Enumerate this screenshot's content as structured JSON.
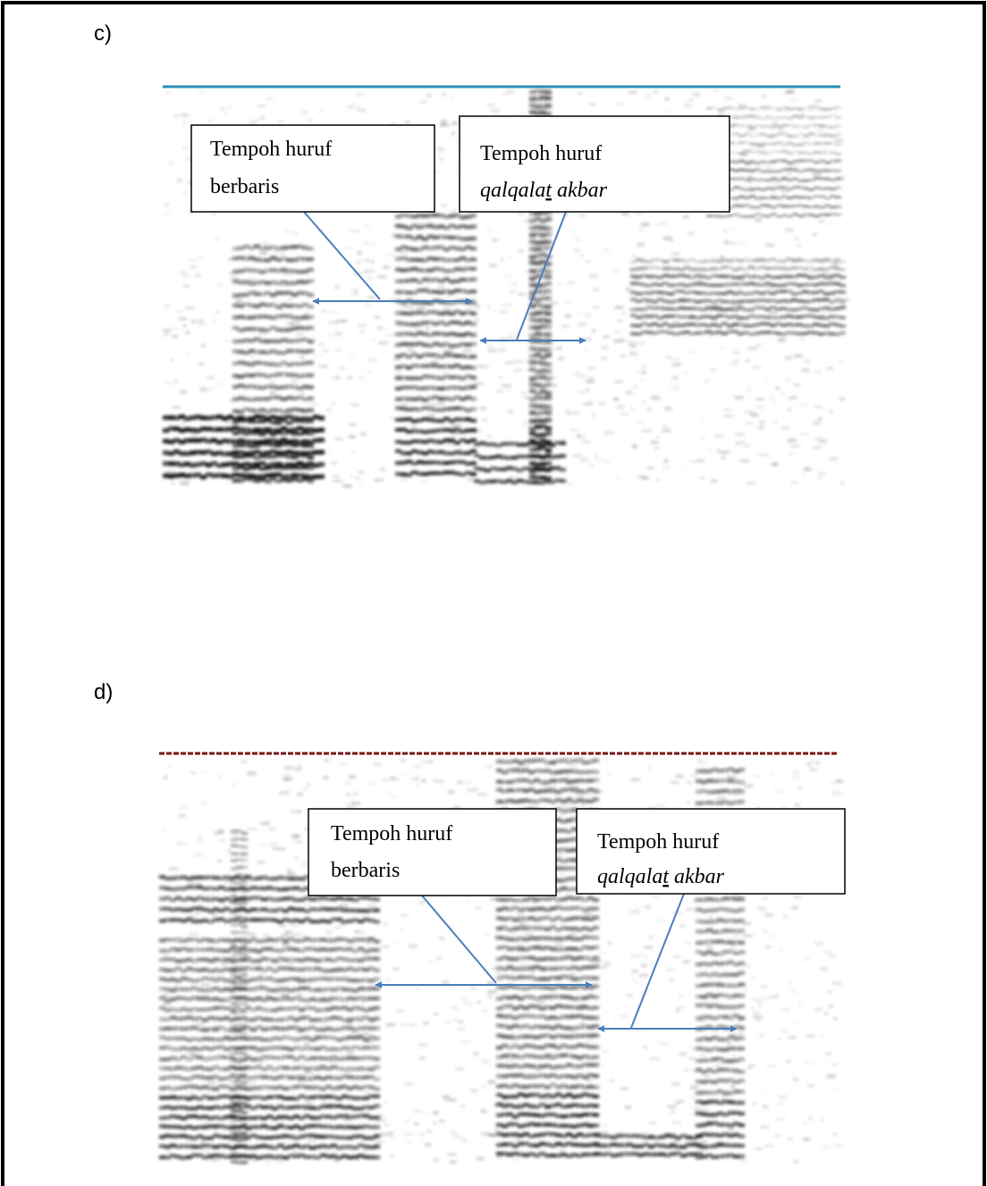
{
  "panels": [
    {
      "label": "c)",
      "callouts": [
        {
          "line1": "Tempoh huruf",
          "line2": "berbaris"
        },
        {
          "line1": "Tempoh huruf",
          "line2_parts": [
            "qalqala",
            "t",
            "akbar"
          ]
        }
      ]
    },
    {
      "label": "d)",
      "callouts": [
        {
          "line1": "Tempoh huruf",
          "line2": "berbaris"
        },
        {
          "line1": "Tempoh huruf",
          "line2_parts": [
            "qalqala",
            "t",
            "akbar"
          ]
        }
      ]
    }
  ]
}
